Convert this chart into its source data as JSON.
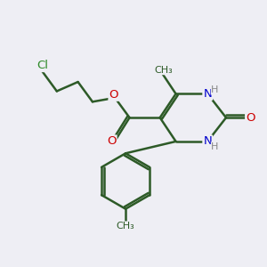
{
  "bg_color": "#eeeef4",
  "bond_color": "#2d5a27",
  "bond_width": 1.8,
  "atom_colors": {
    "C": "#2d5a27",
    "N": "#0000cc",
    "O": "#cc0000",
    "Cl": "#2d8a27",
    "H": "#888888"
  },
  "font_size": 9.5
}
